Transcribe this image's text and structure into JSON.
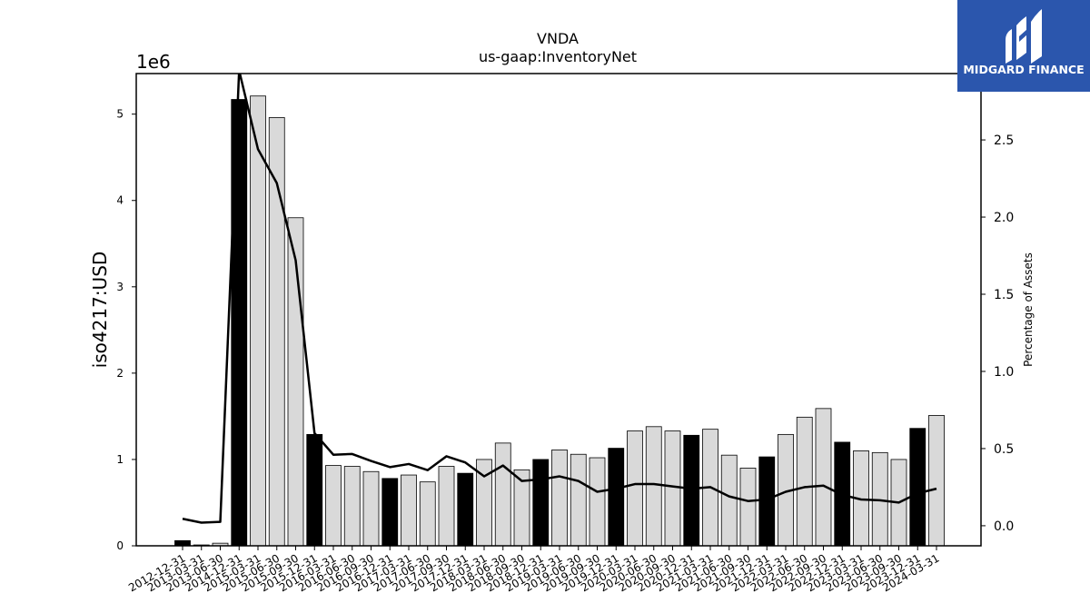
{
  "chart_data": {
    "type": "bar",
    "title": "VNDA",
    "subtitle": "us-gaap:InventoryNet",
    "ylabel": "iso4217:USD",
    "y2label": "Percentage of Assets",
    "y_offset_label": "1e6",
    "ylim": [
      0,
      5.47
    ],
    "y2lim": [
      -0.13,
      2.93
    ],
    "yticks": [
      "0",
      "1",
      "2",
      "3",
      "4",
      "5"
    ],
    "y2ticks": [
      "0.0",
      "0.5",
      "1.0",
      "1.5",
      "2.0",
      "2.5"
    ],
    "categories": [
      "2012-12-31",
      "2013-03-31",
      "2013-06-30",
      "2014-12-31",
      "2015-03-31",
      "2015-06-30",
      "2015-09-30",
      "2015-12-31",
      "2016-03-31",
      "2016-06-30",
      "2016-09-30",
      "2016-12-31",
      "2017-03-31",
      "2017-06-30",
      "2017-09-30",
      "2017-12-31",
      "2018-03-31",
      "2018-06-30",
      "2018-09-30",
      "2018-12-31",
      "2019-03-31",
      "2019-06-30",
      "2019-09-30",
      "2019-12-31",
      "2020-03-31",
      "2020-06-30",
      "2020-09-30",
      "2020-12-31",
      "2021-03-31",
      "2021-06-30",
      "2021-09-30",
      "2021-12-31",
      "2022-03-31",
      "2022-06-30",
      "2022-09-30",
      "2022-12-31",
      "2023-03-31",
      "2023-06-30",
      "2023-09-30",
      "2023-12-31",
      "2024-03-31"
    ],
    "series": [
      {
        "kind": "bar",
        "values": [
          0.06,
          0.01,
          0.03,
          5.17,
          5.21,
          4.96,
          3.8,
          1.29,
          0.93,
          0.92,
          0.86,
          0.78,
          0.82,
          0.74,
          0.92,
          0.84,
          1.0,
          1.19,
          0.88,
          1.0,
          1.11,
          1.06,
          1.02,
          1.13,
          1.33,
          1.38,
          1.33,
          1.28,
          1.35,
          1.05,
          0.9,
          1.03,
          1.29,
          1.49,
          1.59,
          1.2,
          1.1,
          1.08,
          1.0,
          1.36,
          1.51
        ],
        "annual": [
          true,
          false,
          false,
          true,
          false,
          false,
          false,
          true,
          false,
          false,
          false,
          true,
          false,
          false,
          false,
          true,
          false,
          false,
          false,
          true,
          false,
          false,
          false,
          true,
          false,
          false,
          false,
          true,
          false,
          false,
          false,
          true,
          false,
          false,
          false,
          true,
          false,
          false,
          false,
          true,
          false
        ]
      },
      {
        "kind": "line",
        "axis": "right",
        "values": [
          0.045,
          0.02,
          0.025,
          2.95,
          2.44,
          2.22,
          1.72,
          0.6,
          0.46,
          0.465,
          0.42,
          0.38,
          0.4,
          0.36,
          0.45,
          0.41,
          0.32,
          0.39,
          0.29,
          0.3,
          0.32,
          0.29,
          0.22,
          0.24,
          0.27,
          0.27,
          0.255,
          0.24,
          0.25,
          0.19,
          0.16,
          0.17,
          0.22,
          0.25,
          0.26,
          0.2,
          0.17,
          0.165,
          0.15,
          0.21,
          0.24
        ]
      }
    ],
    "colors": {
      "annual_bar": "#000000",
      "quarter_bar": "#d9d9d9",
      "line": "#000000",
      "bar_edge": "#000000"
    }
  },
  "logo": {
    "text": "MIDGARD FINANCE",
    "background": "#2b56ad"
  }
}
